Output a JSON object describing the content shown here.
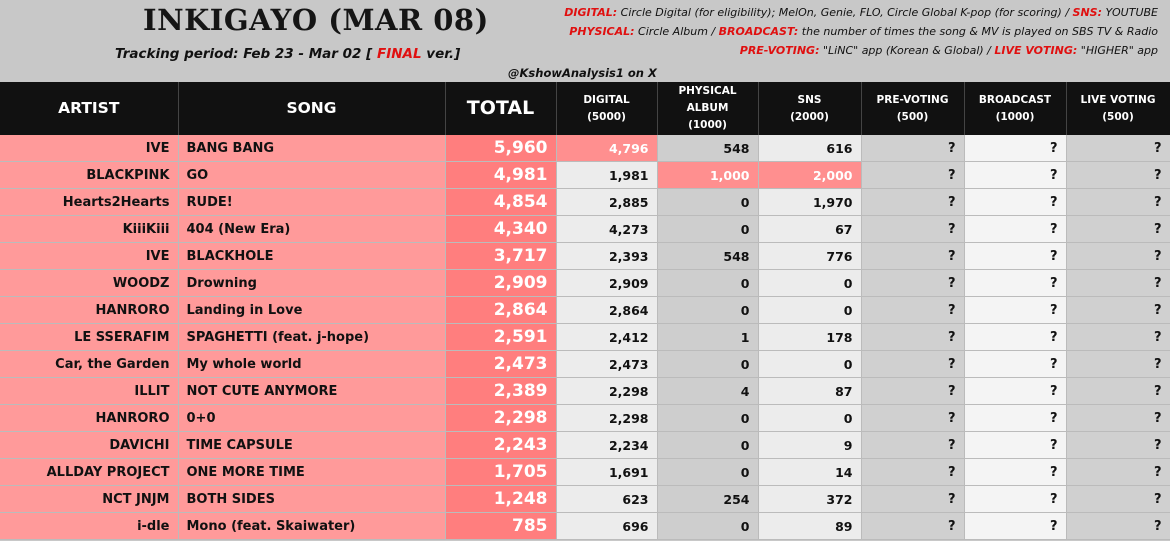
{
  "title": "INKIGAYO (MAR 08)",
  "period": {
    "prefix": "Tracking period: Feb 23 - Mar 02 [ ",
    "final": "FINAL",
    "suffix": " ver.]"
  },
  "handle": "@KshowAnalysis1 on X",
  "info": {
    "digital_label": "DIGITAL:",
    "digital_text": " Circle Digital (for eligibility); MelOn, Genie, FLO, Circle Global K-pop (for scoring) / ",
    "sns_label": "SNS:",
    "sns_text": " YOUTUBE",
    "physical_label": "PHYSICAL:",
    "physical_text": " Circle Album / ",
    "broadcast_label": "BROADCAST:",
    "broadcast_text": " the number of times the song & MV is played on SBS TV & Radio",
    "prevoting_label": "PRE-VOTING:",
    "prevoting_text": " \"LiNC\" app (Korean & Global) / ",
    "livevoting_label": "LIVE VOTING:",
    "livevoting_text": " \"HIGHER\" app"
  },
  "columns": [
    {
      "name": "ARTIST",
      "sub": "",
      "sub2": ""
    },
    {
      "name": "SONG",
      "sub": "",
      "sub2": ""
    },
    {
      "name": "TOTAL",
      "sub": "",
      "sub2": ""
    },
    {
      "name": "DIGITAL",
      "sub": "(5000)",
      "sub2": ""
    },
    {
      "name": "PHYSICAL",
      "sub": "ALBUM",
      "sub2": "(1000)"
    },
    {
      "name": "SNS",
      "sub": "(2000)",
      "sub2": ""
    },
    {
      "name": "PRE-VOTING",
      "sub": "(500)",
      "sub2": ""
    },
    {
      "name": "BROADCAST",
      "sub": "(1000)",
      "sub2": ""
    },
    {
      "name": "LIVE VOTING",
      "sub": "(500)",
      "sub2": ""
    }
  ],
  "rows": [
    {
      "artist": "IVE",
      "song": "BANG BANG",
      "total": "5,960",
      "digital": "4,796",
      "physical": "548",
      "sns": "616",
      "pre": "?",
      "broadcast": "?",
      "live": "?"
    },
    {
      "artist": "BLACKPINK",
      "song": "GO",
      "total": "4,981",
      "digital": "1,981",
      "physical": "1,000",
      "sns": "2,000",
      "pre": "?",
      "broadcast": "?",
      "live": "?"
    },
    {
      "artist": "Hearts2Hearts",
      "song": "RUDE!",
      "total": "4,854",
      "digital": "2,885",
      "physical": "0",
      "sns": "1,970",
      "pre": "?",
      "broadcast": "?",
      "live": "?"
    },
    {
      "artist": "KiiiKiii",
      "song": "404 (New Era)",
      "total": "4,340",
      "digital": "4,273",
      "physical": "0",
      "sns": "67",
      "pre": "?",
      "broadcast": "?",
      "live": "?"
    },
    {
      "artist": "IVE",
      "song": "BLACKHOLE",
      "total": "3,717",
      "digital": "2,393",
      "physical": "548",
      "sns": "776",
      "pre": "?",
      "broadcast": "?",
      "live": "?"
    },
    {
      "artist": "WOODZ",
      "song": "Drowning",
      "total": "2,909",
      "digital": "2,909",
      "physical": "0",
      "sns": "0",
      "pre": "?",
      "broadcast": "?",
      "live": "?"
    },
    {
      "artist": "HANRORO",
      "song": "Landing in Love",
      "total": "2,864",
      "digital": "2,864",
      "physical": "0",
      "sns": "0",
      "pre": "?",
      "broadcast": "?",
      "live": "?"
    },
    {
      "artist": "LE SSERAFIM",
      "song": "SPAGHETTI (feat. j-hope)",
      "total": "2,591",
      "digital": "2,412",
      "physical": "1",
      "sns": "178",
      "pre": "?",
      "broadcast": "?",
      "live": "?"
    },
    {
      "artist": "Car, the Garden",
      "song": "My whole world",
      "total": "2,473",
      "digital": "2,473",
      "physical": "0",
      "sns": "0",
      "pre": "?",
      "broadcast": "?",
      "live": "?"
    },
    {
      "artist": "ILLIT",
      "song": "NOT CUTE ANYMORE",
      "total": "2,389",
      "digital": "2,298",
      "physical": "4",
      "sns": "87",
      "pre": "?",
      "broadcast": "?",
      "live": "?"
    },
    {
      "artist": "HANRORO",
      "song": "0+0",
      "total": "2,298",
      "digital": "2,298",
      "physical": "0",
      "sns": "0",
      "pre": "?",
      "broadcast": "?",
      "live": "?"
    },
    {
      "artist": "DAVICHI",
      "song": "TIME CAPSULE",
      "total": "2,243",
      "digital": "2,234",
      "physical": "0",
      "sns": "9",
      "pre": "?",
      "broadcast": "?",
      "live": "?"
    },
    {
      "artist": "ALLDAY PROJECT",
      "song": "ONE MORE TIME",
      "total": "1,705",
      "digital": "1,691",
      "physical": "0",
      "sns": "14",
      "pre": "?",
      "broadcast": "?",
      "live": "?"
    },
    {
      "artist": "NCT JNJM",
      "song": "BOTH SIDES",
      "total": "1,248",
      "digital": "623",
      "physical": "254",
      "sns": "372",
      "pre": "?",
      "broadcast": "?",
      "live": "?"
    },
    {
      "artist": "i-dle",
      "song": "Mono (feat. Skaiwater)",
      "total": "785",
      "digital": "696",
      "physical": "0",
      "sns": "89",
      "pre": "?",
      "broadcast": "?",
      "live": "?"
    }
  ],
  "colors": {
    "header_bg": "#111111",
    "row_pink": "#ff9a9a",
    "total_red": "#ff7e7e",
    "highlight": "#ff8f8f",
    "accent_red": "#e01010"
  }
}
